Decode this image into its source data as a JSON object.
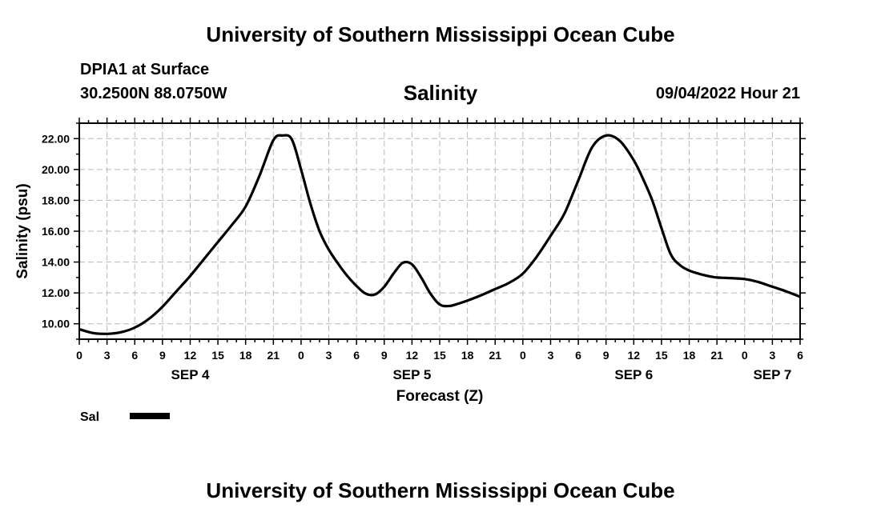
{
  "header": {
    "title": "University of Southern Mississippi Ocean Cube",
    "station": "DPIA1 at Surface",
    "coords": "30.2500N  88.0750W",
    "variable": "Salinity",
    "datetime": "09/04/2022 Hour 21"
  },
  "footer": {
    "title": "University of Southern Mississippi Ocean Cube"
  },
  "chart_data": {
    "type": "line",
    "title": "Salinity",
    "xlabel": "Forecast (Z)",
    "ylabel": "Salinity (psu)",
    "xlim": [
      0,
      78
    ],
    "ylim": [
      9.0,
      23.0
    ],
    "y_ticks": [
      10,
      12,
      14,
      16,
      18,
      20,
      22
    ],
    "y_tick_labels": [
      "10.00",
      "12.00",
      "14.00",
      "16.00",
      "18.00",
      "20.00",
      "22.00"
    ],
    "x_tick_hours": [
      0,
      3,
      6,
      9,
      12,
      15,
      18,
      21,
      24,
      27,
      30,
      33,
      36,
      39,
      42,
      45,
      48,
      51,
      54,
      57,
      60,
      63,
      66,
      69,
      72,
      75,
      78
    ],
    "x_tick_labels": [
      "0",
      "3",
      "6",
      "9",
      "12",
      "15",
      "18",
      "21",
      "0",
      "3",
      "6",
      "9",
      "12",
      "15",
      "18",
      "21",
      "0",
      "3",
      "6",
      "9",
      "12",
      "15",
      "18",
      "21",
      "0",
      "3",
      "6"
    ],
    "date_labels": [
      {
        "text": "SEP 4",
        "hour": 12
      },
      {
        "text": "SEP 5",
        "hour": 36
      },
      {
        "text": "SEP 6",
        "hour": 60
      },
      {
        "text": "SEP 7",
        "hour": 75
      }
    ],
    "grid": true,
    "legend": {
      "position": "bottom-left",
      "color": "#000000"
    },
    "series": [
      {
        "name": "Sal",
        "color": "#000000",
        "x": [
          0,
          1.5,
          3,
          4.5,
          6,
          7.5,
          9,
          10.5,
          12,
          13.5,
          15,
          16.5,
          18,
          19.5,
          21,
          22,
          23,
          24,
          25,
          26,
          27,
          28,
          29,
          30,
          31,
          32,
          33,
          34,
          35,
          36,
          37,
          38,
          39,
          40,
          41,
          42,
          43.5,
          45,
          46.5,
          48,
          49.5,
          51,
          52.5,
          54,
          55.5,
          57,
          58.5,
          60,
          61,
          62,
          63,
          64,
          65,
          66,
          67,
          68,
          69,
          70,
          72,
          73.5,
          75,
          76.5,
          78
        ],
        "y": [
          9.65,
          9.4,
          9.35,
          9.45,
          9.75,
          10.3,
          11.1,
          12.1,
          13.1,
          14.2,
          15.3,
          16.4,
          17.6,
          19.6,
          21.9,
          22.2,
          21.95,
          20.0,
          17.8,
          16.0,
          14.8,
          13.9,
          13.1,
          12.45,
          11.95,
          11.9,
          12.4,
          13.25,
          13.95,
          13.85,
          13.0,
          11.95,
          11.25,
          11.15,
          11.3,
          11.5,
          11.85,
          12.25,
          12.65,
          13.25,
          14.35,
          15.7,
          17.15,
          19.3,
          21.45,
          22.2,
          21.85,
          20.6,
          19.4,
          18.0,
          16.2,
          14.5,
          13.8,
          13.45,
          13.25,
          13.1,
          13.0,
          12.97,
          12.9,
          12.7,
          12.4,
          12.1,
          11.75
        ]
      }
    ]
  }
}
